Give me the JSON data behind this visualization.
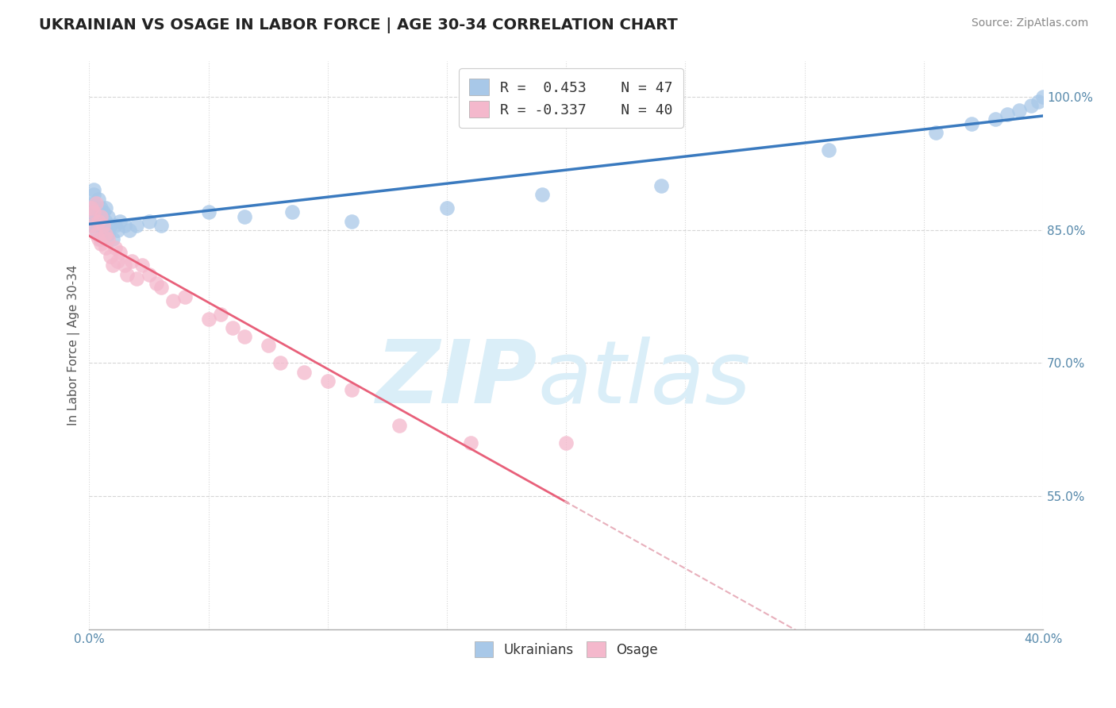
{
  "title": "UKRAINIAN VS OSAGE IN LABOR FORCE | AGE 30-34 CORRELATION CHART",
  "source_text": "Source: ZipAtlas.com",
  "ylabel": "In Labor Force | Age 30-34",
  "xlim": [
    0.0,
    0.4
  ],
  "ylim": [
    0.4,
    1.04
  ],
  "xticks": [
    0.0,
    0.05,
    0.1,
    0.15,
    0.2,
    0.25,
    0.3,
    0.35,
    0.4
  ],
  "ytick_positions": [
    0.55,
    0.7,
    0.85,
    1.0
  ],
  "ytick_labels": [
    "55.0%",
    "70.0%",
    "85.0%",
    "100.0%"
  ],
  "grid_color": "#cccccc",
  "background_color": "#ffffff",
  "blue_color": "#a8c8e8",
  "pink_color": "#f4b8cc",
  "blue_line_color": "#3a7abf",
  "pink_line_color": "#e8607a",
  "pink_dash_color": "#e8b0bc",
  "watermark_color": "#daeef8",
  "legend_R_blue": "0.453",
  "legend_N_blue": "47",
  "legend_R_pink": "-0.337",
  "legend_N_pink": "40",
  "blue_dots_x": [
    0.001,
    0.001,
    0.002,
    0.002,
    0.002,
    0.003,
    0.003,
    0.003,
    0.004,
    0.004,
    0.004,
    0.005,
    0.005,
    0.005,
    0.006,
    0.006,
    0.007,
    0.007,
    0.007,
    0.008,
    0.008,
    0.009,
    0.01,
    0.011,
    0.012,
    0.013,
    0.015,
    0.017,
    0.02,
    0.025,
    0.03,
    0.05,
    0.065,
    0.085,
    0.11,
    0.15,
    0.19,
    0.24,
    0.31,
    0.355,
    0.37,
    0.38,
    0.385,
    0.39,
    0.395,
    0.398,
    0.4
  ],
  "blue_dots_y": [
    0.855,
    0.87,
    0.88,
    0.89,
    0.895,
    0.85,
    0.865,
    0.875,
    0.855,
    0.87,
    0.885,
    0.84,
    0.86,
    0.875,
    0.855,
    0.87,
    0.85,
    0.86,
    0.875,
    0.845,
    0.865,
    0.855,
    0.84,
    0.855,
    0.85,
    0.86,
    0.855,
    0.85,
    0.855,
    0.86,
    0.855,
    0.87,
    0.865,
    0.87,
    0.86,
    0.875,
    0.89,
    0.9,
    0.94,
    0.96,
    0.97,
    0.975,
    0.98,
    0.985,
    0.99,
    0.995,
    1.0
  ],
  "pink_dots_x": [
    0.001,
    0.001,
    0.002,
    0.003,
    0.003,
    0.004,
    0.004,
    0.005,
    0.005,
    0.006,
    0.007,
    0.007,
    0.008,
    0.009,
    0.01,
    0.011,
    0.012,
    0.013,
    0.015,
    0.016,
    0.018,
    0.02,
    0.022,
    0.025,
    0.028,
    0.03,
    0.035,
    0.04,
    0.05,
    0.055,
    0.06,
    0.065,
    0.075,
    0.08,
    0.09,
    0.1,
    0.11,
    0.13,
    0.16,
    0.2
  ],
  "pink_dots_y": [
    0.875,
    0.855,
    0.87,
    0.88,
    0.845,
    0.86,
    0.84,
    0.865,
    0.835,
    0.855,
    0.845,
    0.83,
    0.84,
    0.82,
    0.81,
    0.83,
    0.815,
    0.825,
    0.81,
    0.8,
    0.815,
    0.795,
    0.81,
    0.8,
    0.79,
    0.785,
    0.77,
    0.775,
    0.75,
    0.755,
    0.74,
    0.73,
    0.72,
    0.7,
    0.69,
    0.68,
    0.67,
    0.63,
    0.61,
    0.61
  ]
}
